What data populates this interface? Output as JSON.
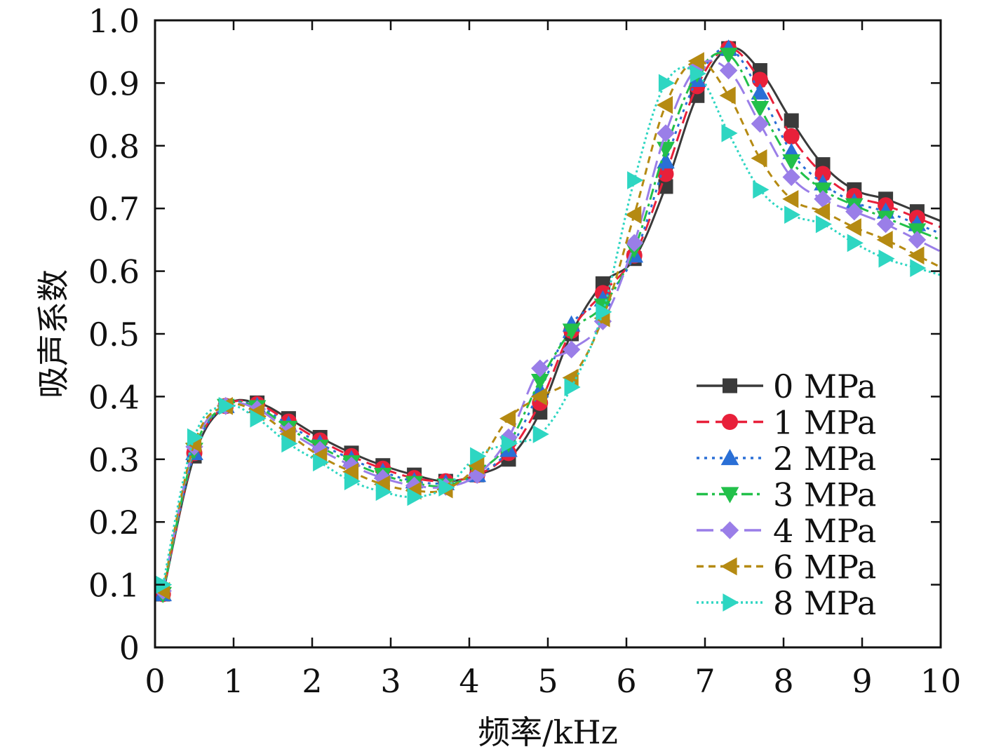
{
  "chart_data": {
    "type": "line",
    "title": "",
    "xlabel": "频率/kHz",
    "ylabel": "吸声系数",
    "xlim": [
      0,
      10
    ],
    "ylim": [
      0,
      1.0
    ],
    "xticks": [
      "0",
      "1",
      "2",
      "3",
      "4",
      "5",
      "6",
      "7",
      "8",
      "9",
      "10"
    ],
    "yticks": [
      "0",
      "0.1",
      "0.2",
      "0.3",
      "0.4",
      "0.5",
      "0.6",
      "0.7",
      "0.8",
      "0.9",
      "1.0"
    ],
    "legend_position": "bottom-right",
    "grid": false,
    "x": [
      0.1,
      0.5,
      0.9,
      1.3,
      1.7,
      2.1,
      2.5,
      2.9,
      3.3,
      3.7,
      4.1,
      4.5,
      4.9,
      5.3,
      5.7,
      6.1,
      6.5,
      6.9,
      7.3,
      7.7,
      8.1,
      8.5,
      8.9,
      9.3,
      9.7
    ],
    "series": [
      {
        "name": "0 MPa",
        "color": "#3a3a3a",
        "marker": "square",
        "dash": "solid",
        "values": [
          0.085,
          0.305,
          0.385,
          0.39,
          0.365,
          0.335,
          0.31,
          0.29,
          0.275,
          0.265,
          0.275,
          0.3,
          0.375,
          0.5,
          0.58,
          0.62,
          0.735,
          0.88,
          0.955,
          0.92,
          0.84,
          0.77,
          0.73,
          0.715,
          0.695
        ]
      },
      {
        "name": "1 MPa",
        "color": "#e8203a",
        "marker": "circle",
        "dash": "dash",
        "values": [
          0.085,
          0.31,
          0.385,
          0.388,
          0.36,
          0.33,
          0.305,
          0.285,
          0.27,
          0.265,
          0.275,
          0.31,
          0.39,
          0.505,
          0.565,
          0.625,
          0.755,
          0.895,
          0.955,
          0.905,
          0.815,
          0.755,
          0.72,
          0.705,
          0.685
        ]
      },
      {
        "name": "2 MPa",
        "color": "#2a6fd6",
        "marker": "triangle-up",
        "dash": "dot",
        "values": [
          0.085,
          0.31,
          0.385,
          0.385,
          0.355,
          0.325,
          0.3,
          0.28,
          0.265,
          0.262,
          0.275,
          0.315,
          0.41,
          0.515,
          0.555,
          0.625,
          0.775,
          0.905,
          0.955,
          0.885,
          0.79,
          0.74,
          0.71,
          0.695,
          0.675
        ]
      },
      {
        "name": "3 MPa",
        "color": "#22c04a",
        "marker": "triangle-down",
        "dash": "dashdot",
        "values": [
          0.085,
          0.315,
          0.385,
          0.383,
          0.35,
          0.32,
          0.295,
          0.275,
          0.262,
          0.258,
          0.28,
          0.325,
          0.425,
          0.505,
          0.545,
          0.635,
          0.795,
          0.915,
          0.945,
          0.86,
          0.775,
          0.73,
          0.705,
          0.685,
          0.665
        ]
      },
      {
        "name": "4 MPa",
        "color": "#9a7ee8",
        "marker": "diamond",
        "dash": "longdash",
        "values": [
          0.09,
          0.32,
          0.385,
          0.38,
          0.345,
          0.315,
          0.29,
          0.27,
          0.258,
          0.256,
          0.275,
          0.335,
          0.445,
          0.475,
          0.52,
          0.645,
          0.82,
          0.925,
          0.92,
          0.835,
          0.75,
          0.715,
          0.695,
          0.675,
          0.65
        ]
      },
      {
        "name": "6 MPa",
        "color": "#b58a12",
        "marker": "triangle-left",
        "dash": "shortdash",
        "values": [
          0.09,
          0.325,
          0.385,
          0.375,
          0.34,
          0.305,
          0.28,
          0.26,
          0.25,
          0.252,
          0.29,
          0.365,
          0.4,
          0.43,
          0.525,
          0.69,
          0.865,
          0.935,
          0.88,
          0.78,
          0.715,
          0.695,
          0.67,
          0.65,
          0.625
        ]
      },
      {
        "name": "8 MPa",
        "color": "#2ed6c2",
        "marker": "triangle-right",
        "dash": "densedot",
        "values": [
          0.1,
          0.335,
          0.385,
          0.365,
          0.325,
          0.295,
          0.265,
          0.248,
          0.24,
          0.255,
          0.305,
          0.325,
          0.34,
          0.415,
          0.535,
          0.745,
          0.9,
          0.915,
          0.82,
          0.73,
          0.69,
          0.675,
          0.645,
          0.62,
          0.605
        ]
      }
    ]
  }
}
